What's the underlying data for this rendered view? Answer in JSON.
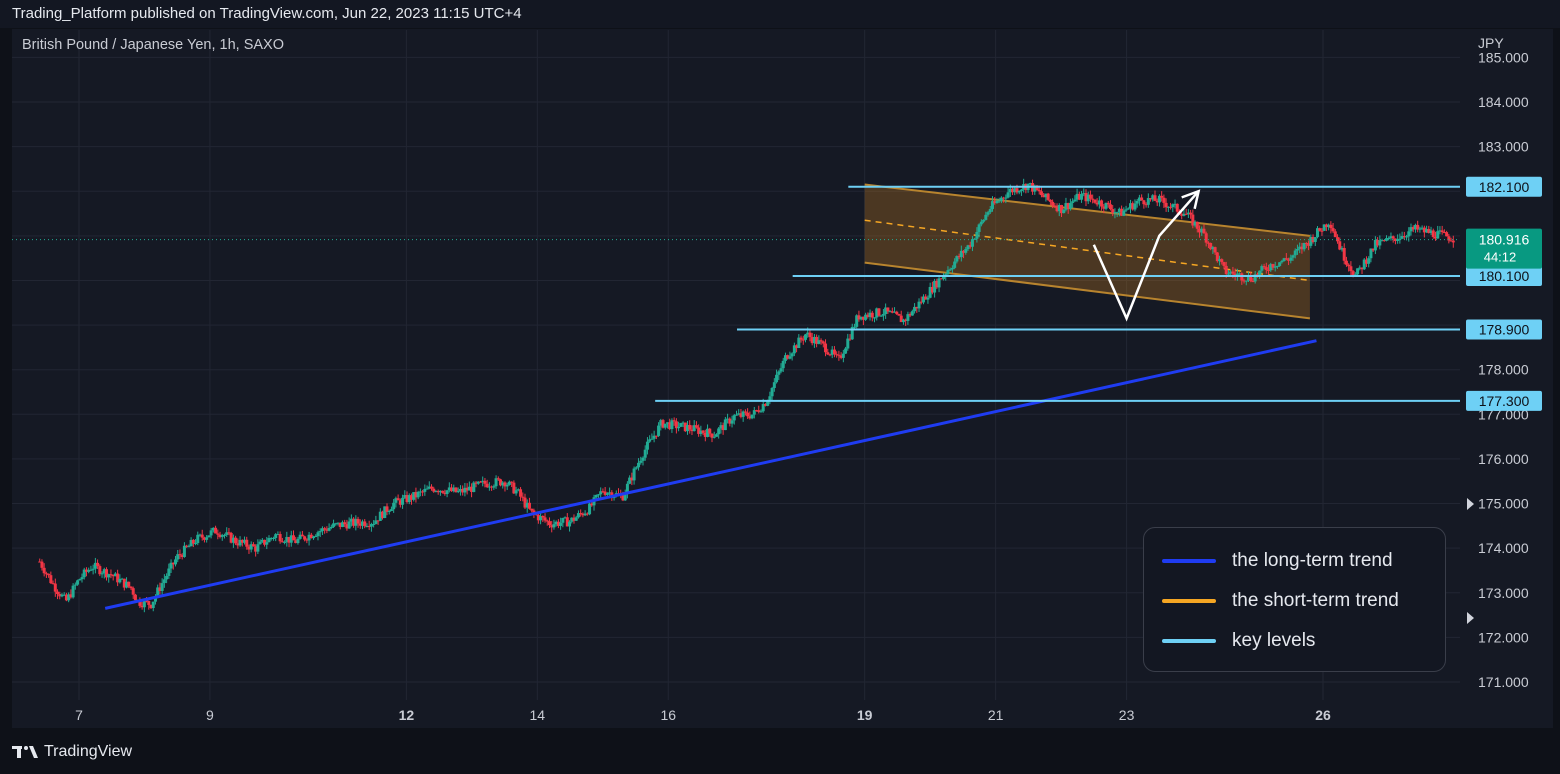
{
  "header": {
    "published": "Trading_Platform published on TradingView.com, Jun 22, 2023 11:15 UTC+4"
  },
  "chart": {
    "symbol": "British Pound / Japanese Yen, 1h, SAXO",
    "currency": "JPY"
  },
  "footer": {
    "brand": "TradingView"
  },
  "legend": {
    "items": [
      {
        "label": "the long-term trend",
        "color": "#1f3cf2"
      },
      {
        "label": "the short-term trend",
        "color": "#f5a623"
      },
      {
        "label": "key levels",
        "color": "#6ed0f5"
      }
    ]
  },
  "chart_data": {
    "type": "candlestick",
    "instrument": "British Pound / Japanese Yen",
    "timeframe": "1h",
    "y_axis": {
      "min": 170.6,
      "max": 185.1,
      "ticks": [
        171,
        172,
        173,
        174,
        175,
        176,
        177,
        178,
        179,
        180,
        181,
        182,
        183,
        184,
        185
      ],
      "tick_labels": [
        "171.000",
        "172.000",
        "173.000",
        "174.000",
        "175.000",
        "176.000",
        "177.000",
        "178.000",
        "",
        "",
        "",
        "",
        "183.000",
        "184.000",
        "185.000"
      ]
    },
    "x_axis": {
      "ticks": [
        {
          "label": "7",
          "day": 7,
          "bold": false
        },
        {
          "label": "9",
          "day": 9,
          "bold": false
        },
        {
          "label": "12",
          "day": 12,
          "bold": true
        },
        {
          "label": "14",
          "day": 14,
          "bold": false
        },
        {
          "label": "16",
          "day": 16,
          "bold": false
        },
        {
          "label": "19",
          "day": 19,
          "bold": true
        },
        {
          "label": "21",
          "day": 21,
          "bold": false
        },
        {
          "label": "23",
          "day": 23,
          "bold": false
        },
        {
          "label": "26",
          "day": 26,
          "bold": true
        }
      ]
    },
    "key_levels": [
      {
        "label": "182.100",
        "value": 182.1
      },
      {
        "label": "180.100",
        "value": 180.1
      },
      {
        "label": "178.900",
        "value": 178.9
      },
      {
        "label": "177.300",
        "value": 177.3
      }
    ],
    "last_price": {
      "label": "180.916",
      "value": 180.916,
      "countdown": "44:12"
    },
    "long_term_trend": {
      "from": {
        "day": 7.4,
        "price": 172.65
      },
      "to": {
        "day": 25.9,
        "price": 178.65
      }
    },
    "channel": {
      "upper": {
        "from": {
          "day": 19.0,
          "price": 182.15
        },
        "to": {
          "day": 25.8,
          "price": 181.0
        }
      },
      "lower": {
        "from": {
          "day": 19.0,
          "price": 180.4
        },
        "to": {
          "day": 25.8,
          "price": 179.15
        }
      },
      "mid": {
        "from": {
          "day": 19.0,
          "price": 181.35
        },
        "to": {
          "day": 25.8,
          "price": 180.0
        }
      }
    },
    "projection": [
      {
        "day": 22.5,
        "price": 180.8
      },
      {
        "day": 23.0,
        "price": 179.15
      },
      {
        "day": 23.5,
        "price": 181.0
      },
      {
        "day": 24.1,
        "price": 182.0
      }
    ],
    "price_path": [
      [
        6.4,
        173.7
      ],
      [
        6.6,
        173.2
      ],
      [
        6.8,
        172.8
      ],
      [
        7.0,
        173.3
      ],
      [
        7.2,
        173.6
      ],
      [
        7.5,
        173.4
      ],
      [
        7.8,
        173.1
      ],
      [
        7.9,
        172.8
      ],
      [
        8.1,
        172.75
      ],
      [
        8.3,
        173.3
      ],
      [
        8.5,
        173.8
      ],
      [
        8.8,
        174.2
      ],
      [
        9.1,
        174.4
      ],
      [
        9.4,
        174.15
      ],
      [
        9.7,
        174.0
      ],
      [
        10.0,
        174.3
      ],
      [
        10.3,
        174.15
      ],
      [
        10.6,
        174.35
      ],
      [
        10.9,
        174.5
      ],
      [
        11.1,
        174.55
      ],
      [
        11.5,
        174.6
      ],
      [
        11.8,
        175.0
      ],
      [
        12.1,
        175.15
      ],
      [
        12.4,
        175.35
      ],
      [
        12.8,
        175.25
      ],
      [
        13.2,
        175.45
      ],
      [
        13.5,
        175.5
      ],
      [
        13.7,
        175.25
      ],
      [
        13.9,
        174.8
      ],
      [
        14.2,
        174.55
      ],
      [
        14.5,
        174.6
      ],
      [
        14.8,
        174.9
      ],
      [
        15.0,
        175.3
      ],
      [
        15.3,
        175.15
      ],
      [
        15.6,
        176.1
      ],
      [
        15.9,
        176.8
      ],
      [
        16.3,
        176.7
      ],
      [
        16.7,
        176.55
      ],
      [
        17.0,
        176.95
      ],
      [
        17.3,
        177.0
      ],
      [
        17.5,
        177.3
      ],
      [
        17.8,
        178.3
      ],
      [
        18.1,
        178.8
      ],
      [
        18.4,
        178.5
      ],
      [
        18.6,
        178.2
      ],
      [
        18.9,
        179.2
      ],
      [
        19.3,
        179.3
      ],
      [
        19.6,
        179.1
      ],
      [
        19.9,
        179.6
      ],
      [
        20.3,
        180.3
      ],
      [
        20.6,
        180.8
      ],
      [
        20.9,
        181.6
      ],
      [
        21.2,
        182.0
      ],
      [
        21.5,
        182.15
      ],
      [
        21.8,
        181.8
      ],
      [
        22.0,
        181.6
      ],
      [
        22.3,
        181.9
      ],
      [
        22.6,
        181.75
      ],
      [
        22.9,
        181.5
      ],
      [
        23.2,
        181.8
      ],
      [
        23.5,
        181.8
      ],
      [
        23.9,
        181.5
      ],
      [
        24.2,
        181.0
      ],
      [
        24.5,
        180.2
      ],
      [
        24.9,
        180.05
      ],
      [
        25.2,
        180.35
      ],
      [
        25.5,
        180.5
      ],
      [
        25.8,
        180.9
      ],
      [
        26.1,
        181.35
      ],
      [
        26.3,
        180.6
      ],
      [
        26.5,
        180.1
      ],
      [
        26.8,
        180.8
      ],
      [
        27.1,
        180.95
      ],
      [
        27.4,
        181.15
      ],
      [
        27.7,
        181.05
      ],
      [
        28.0,
        180.95
      ]
    ]
  }
}
